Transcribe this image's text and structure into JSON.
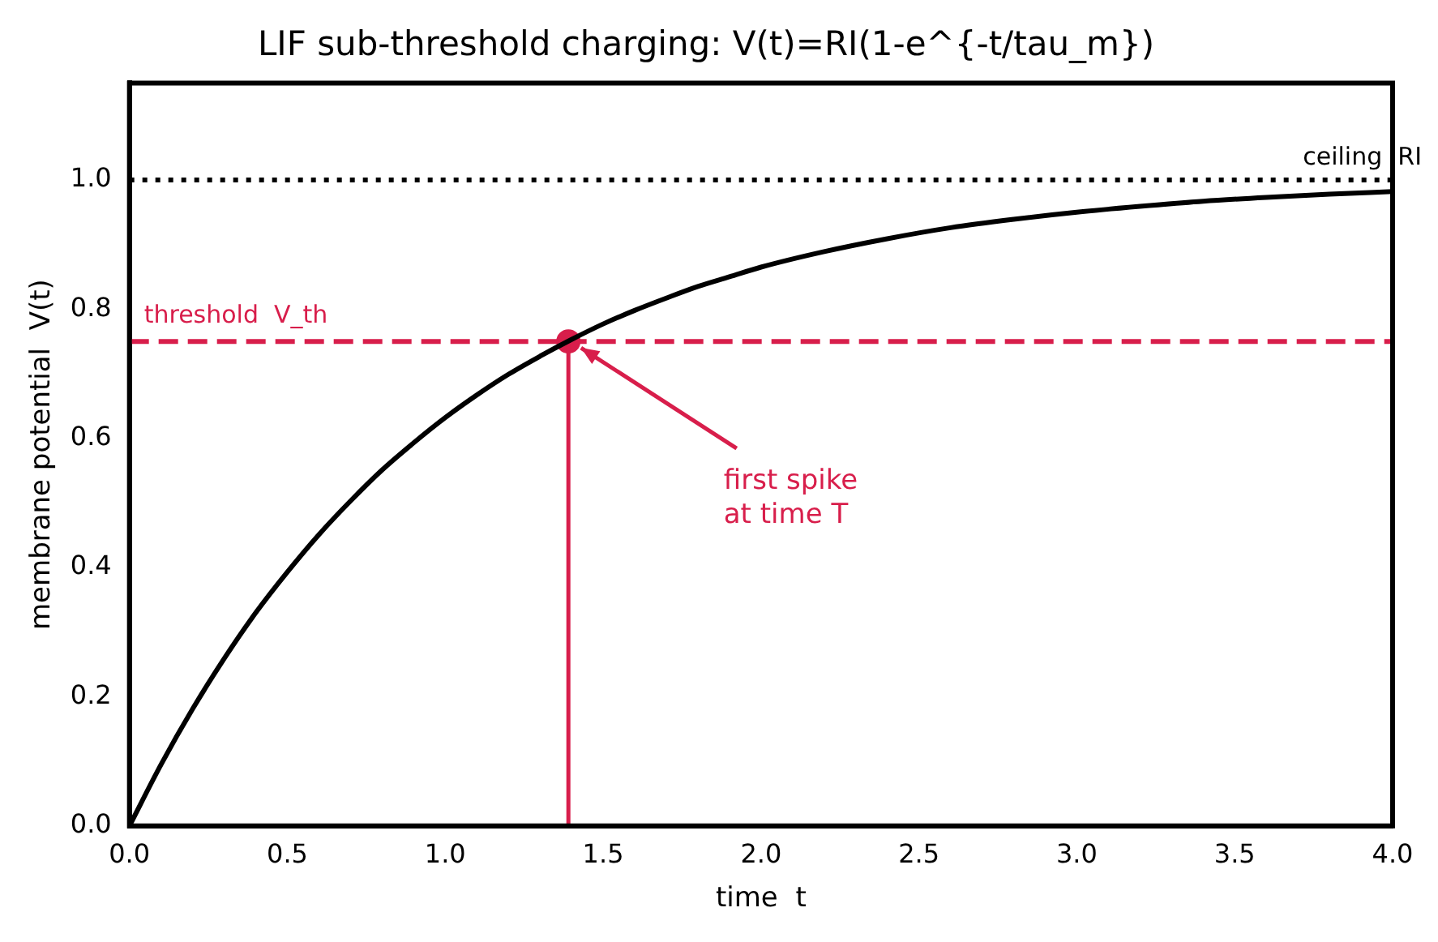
{
  "chart_data": {
    "type": "line",
    "title": "LIF sub-threshold charging: V(t)=RI(1-e^{-t/tau_m})",
    "xlabel": "time  t",
    "ylabel": "membrane potential  V(t)",
    "xlim": [
      0,
      4
    ],
    "ylim": [
      0,
      1.15
    ],
    "xticks": [
      {
        "value": 0,
        "label": "0.0"
      },
      {
        "value": 0.5,
        "label": "0.5"
      },
      {
        "value": 1,
        "label": "1.0"
      },
      {
        "value": 1.5,
        "label": "1.5"
      },
      {
        "value": 2,
        "label": "2.0"
      },
      {
        "value": 2.5,
        "label": "2.5"
      },
      {
        "value": 3,
        "label": "3.0"
      },
      {
        "value": 3.5,
        "label": "3.5"
      },
      {
        "value": 4,
        "label": "4.0"
      }
    ],
    "yticks": [
      {
        "value": 0,
        "label": "0.0"
      },
      {
        "value": 0.2,
        "label": "0.2"
      },
      {
        "value": 0.4,
        "label": "0.4"
      },
      {
        "value": 0.6,
        "label": "0.6"
      },
      {
        "value": 0.8,
        "label": "0.8"
      },
      {
        "value": 1,
        "label": "1.0"
      }
    ],
    "grid": false,
    "legend": false,
    "series": [
      {
        "color": "#000000",
        "line_style": "solid",
        "x": [
          0,
          0.1,
          0.2,
          0.3,
          0.4,
          0.5,
          0.6,
          0.7,
          0.8,
          0.9,
          1.0,
          1.1,
          1.2,
          1.3,
          1.4,
          1.5,
          1.6,
          1.7,
          1.8,
          1.9,
          2.0,
          2.2,
          2.4,
          2.6,
          2.8,
          3.0,
          3.2,
          3.4,
          3.6,
          3.8,
          4.0
        ],
        "values": [
          0,
          0.095,
          0.181,
          0.259,
          0.33,
          0.393,
          0.451,
          0.503,
          0.551,
          0.593,
          0.632,
          0.667,
          0.699,
          0.727,
          0.753,
          0.777,
          0.798,
          0.817,
          0.835,
          0.85,
          0.865,
          0.889,
          0.909,
          0.926,
          0.939,
          0.95,
          0.959,
          0.967,
          0.973,
          0.978,
          0.982
        ]
      },
      {
        "color": "#d81e4b",
        "line_style": "solid",
        "x": [
          1.39,
          1.39
        ],
        "values": [
          0,
          0.75
        ]
      },
      {
        "type": "scatter",
        "color": "#d81e4b",
        "marker": "circle",
        "x": [
          1.39
        ],
        "values": [
          0.75
        ]
      }
    ],
    "ref_lines": [
      {
        "axis": "y",
        "value": 1.0,
        "label": "ceiling  RI",
        "color": "#000000",
        "line_style": "dotted"
      },
      {
        "axis": "y",
        "value": 0.75,
        "label": "threshold  V_th",
        "color": "#d81e4b",
        "line_style": "dashed"
      }
    ],
    "annotations": [
      {
        "text": "first spike\nat time T",
        "x": 1.43,
        "y": 0.74
      }
    ]
  }
}
